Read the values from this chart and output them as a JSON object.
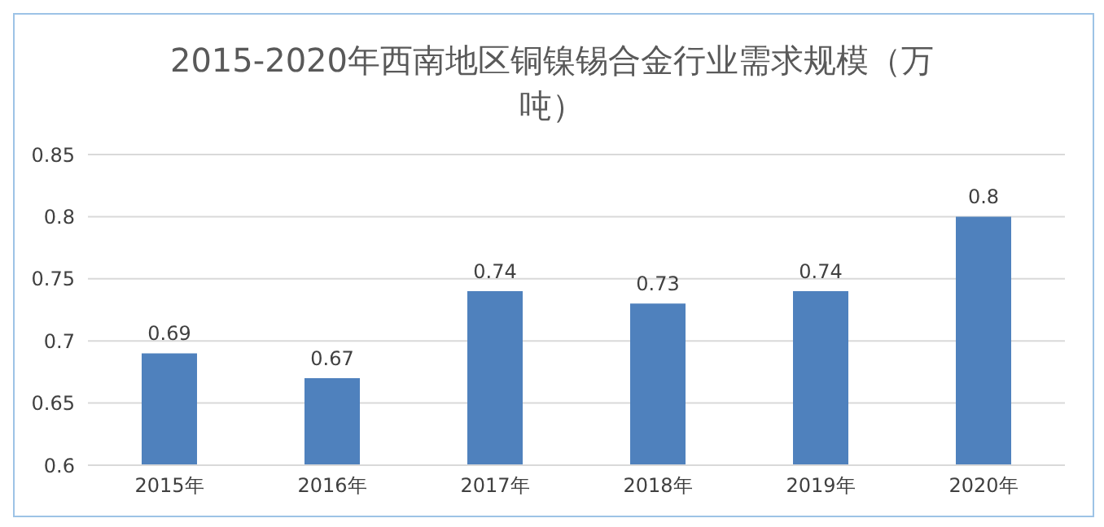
{
  "chart_data": {
    "type": "bar",
    "title": "2015-2020年西南地区铜镍锡合金行业需求规模（万吨）",
    "categories": [
      "2015年",
      "2016年",
      "2017年",
      "2018年",
      "2019年",
      "2020年"
    ],
    "values": [
      0.69,
      0.67,
      0.74,
      0.73,
      0.74,
      0.8
    ],
    "color": "#4f81bd",
    "ylim": [
      0.6,
      0.85
    ],
    "yticks": [
      0.6,
      0.65,
      0.7,
      0.75,
      0.8,
      0.85
    ],
    "grid": "y",
    "data_labels": true,
    "legend": false
  }
}
